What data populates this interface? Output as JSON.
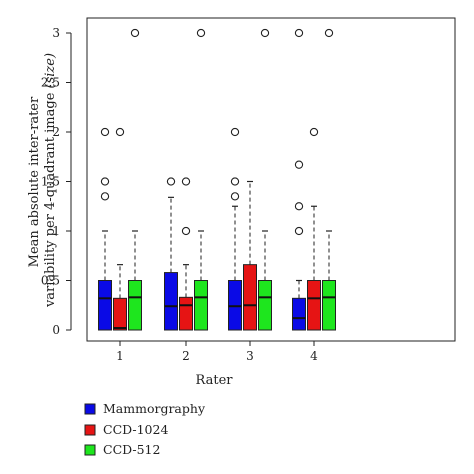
{
  "chart_data": {
    "type": "boxplot",
    "xlabel": "Rater",
    "ylabel_lines": [
      "Mean absolute inter-rater",
      "variability per 4-quadrant image"
    ],
    "ylabel_suffix": "(size)",
    "categories": [
      "1",
      "2",
      "3",
      "4"
    ],
    "y_ticks": [
      "0",
      "0.5",
      "1",
      "1.5",
      "2",
      "2.5",
      "3"
    ],
    "ylim": [
      0,
      3
    ],
    "grid": false,
    "legend_position": "below-left",
    "series": [
      {
        "name": "Mammorgraphy",
        "color": "#0a0ae6",
        "boxes": [
          {
            "whisker_low": 0,
            "q1": 0,
            "median": 0.32,
            "q3": 0.5,
            "whisker_high": 1.0,
            "outliers": [
              1.35,
              1.5,
              2.0
            ]
          },
          {
            "whisker_low": 0,
            "q1": 0,
            "median": 0.24,
            "q3": 0.58,
            "whisker_high": 1.34,
            "outliers": [
              1.5
            ]
          },
          {
            "whisker_low": 0,
            "q1": 0,
            "median": 0.24,
            "q3": 0.5,
            "whisker_high": 1.25,
            "outliers": [
              1.35,
              1.5,
              2.0
            ]
          },
          {
            "whisker_low": 0,
            "q1": 0,
            "median": 0.12,
            "q3": 0.32,
            "whisker_high": 0.5,
            "outliers": [
              1.0,
              1.25,
              1.67,
              3.0
            ]
          }
        ]
      },
      {
        "name": "CCD-1024",
        "color": "#e61414",
        "boxes": [
          {
            "whisker_low": 0,
            "q1": 0,
            "median": 0.02,
            "q3": 0.32,
            "whisker_high": 0.66,
            "outliers": [
              2.0
            ]
          },
          {
            "whisker_low": 0,
            "q1": 0,
            "median": 0.25,
            "q3": 0.33,
            "whisker_high": 0.66,
            "outliers": [
              1.0,
              1.5
            ]
          },
          {
            "whisker_low": 0,
            "q1": 0,
            "median": 0.25,
            "q3": 0.66,
            "whisker_high": 1.5,
            "outliers": []
          },
          {
            "whisker_low": 0,
            "q1": 0,
            "median": 0.32,
            "q3": 0.5,
            "whisker_high": 1.25,
            "outliers": [
              2.0
            ]
          }
        ]
      },
      {
        "name": "CCD-512",
        "color": "#1ee61e",
        "boxes": [
          {
            "whisker_low": 0,
            "q1": 0,
            "median": 0.33,
            "q3": 0.5,
            "whisker_high": 1.0,
            "outliers": [
              3.0
            ]
          },
          {
            "whisker_low": 0,
            "q1": 0,
            "median": 0.33,
            "q3": 0.5,
            "whisker_high": 1.0,
            "outliers": [
              3.0
            ]
          },
          {
            "whisker_low": 0,
            "q1": 0,
            "median": 0.33,
            "q3": 0.5,
            "whisker_high": 1.0,
            "outliers": [
              3.0
            ]
          },
          {
            "whisker_low": 0,
            "q1": 0,
            "median": 0.33,
            "q3": 0.5,
            "whisker_high": 1.0,
            "outliers": [
              3.0
            ]
          }
        ]
      }
    ]
  }
}
